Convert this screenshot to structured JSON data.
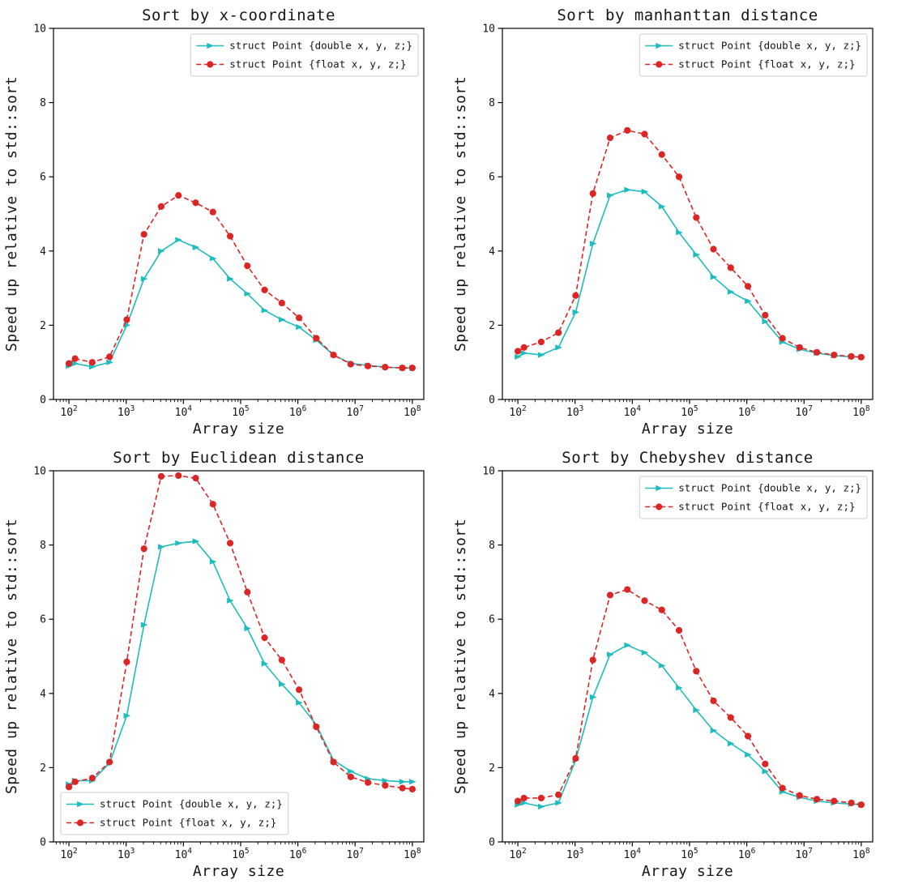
{
  "figure": {
    "xlabel": "Array size",
    "ylabel": "Speed up relative to std::sort",
    "x_major_tick_exponents": [
      2,
      3,
      4,
      5,
      6,
      7,
      8
    ],
    "y_tick_labels": [
      "0",
      "2",
      "4",
      "6",
      "8",
      "10"
    ],
    "y_ticks": [
      0,
      2,
      4,
      6,
      8,
      10
    ],
    "ylim": [
      0,
      10
    ],
    "xlim_log": [
      1.73,
      8.2
    ],
    "colors": {
      "double_series": "#1ebcbe",
      "float_series": "#dc2626",
      "text": "#151515",
      "legend_border": "#cccccc",
      "spine": "#000000"
    }
  },
  "chart_data": [
    {
      "type": "line",
      "title": "Sort by x-coordinate",
      "xlabel": "Array size",
      "ylabel": "Speed up relative to std::sort",
      "xscale": "log",
      "ylim": [
        0,
        10
      ],
      "legend_position": "top-right",
      "x": [
        100,
        128,
        256,
        512,
        1024,
        2048,
        4096,
        8192,
        16384,
        32768,
        65536,
        131072,
        262144,
        524288,
        1048576,
        2097152,
        4194304,
        8388608,
        16777216,
        33554432,
        67108864,
        100000000
      ],
      "series": [
        {
          "name": "struct Point {double x, y, z;}",
          "marker": "triangle-right",
          "line": "solid",
          "values": [
            0.9,
            0.97,
            0.88,
            1.0,
            2.0,
            3.25,
            4.0,
            4.3,
            4.1,
            3.8,
            3.25,
            2.85,
            2.4,
            2.15,
            1.95,
            1.6,
            1.2,
            0.97,
            0.92,
            0.87,
            0.85,
            0.85
          ]
        },
        {
          "name": "struct Point {float x, y, z;}",
          "marker": "circle",
          "line": "dashed",
          "values": [
            0.97,
            1.1,
            1.0,
            1.15,
            2.15,
            4.45,
            5.2,
            5.5,
            5.3,
            5.05,
            4.4,
            3.6,
            2.95,
            2.6,
            2.2,
            1.65,
            1.2,
            0.95,
            0.9,
            0.87,
            0.85,
            0.85
          ]
        }
      ]
    },
    {
      "type": "line",
      "title": "Sort by manhanttan distance",
      "xlabel": "Array size",
      "ylabel": "Speed up relative to std::sort",
      "xscale": "log",
      "ylim": [
        0,
        10
      ],
      "legend_position": "top-right",
      "x": [
        100,
        128,
        256,
        512,
        1024,
        2048,
        4096,
        8192,
        16384,
        32768,
        65536,
        131072,
        262144,
        524288,
        1048576,
        2097152,
        4194304,
        8388608,
        16777216,
        33554432,
        67108864,
        100000000
      ],
      "series": [
        {
          "name": "struct Point {double x, y, z;}",
          "marker": "triangle-right",
          "line": "solid",
          "values": [
            1.15,
            1.25,
            1.2,
            1.4,
            2.35,
            4.2,
            5.5,
            5.65,
            5.6,
            5.2,
            4.5,
            3.9,
            3.3,
            2.9,
            2.65,
            2.1,
            1.55,
            1.35,
            1.25,
            1.18,
            1.15,
            1.14
          ]
        },
        {
          "name": "struct Point {float x, y, z;}",
          "marker": "circle",
          "line": "dashed",
          "values": [
            1.3,
            1.4,
            1.55,
            1.8,
            2.8,
            5.55,
            7.05,
            7.25,
            7.15,
            6.6,
            6.0,
            4.9,
            4.05,
            3.55,
            3.05,
            2.27,
            1.65,
            1.4,
            1.27,
            1.2,
            1.16,
            1.14
          ]
        }
      ]
    },
    {
      "type": "line",
      "title": "Sort by Euclidean distance",
      "xlabel": "Array size",
      "ylabel": "Speed up relative to std::sort",
      "xscale": "log",
      "ylim": [
        0,
        10
      ],
      "legend_position": "bottom-left",
      "x": [
        100,
        128,
        256,
        512,
        1024,
        2048,
        4096,
        8192,
        16384,
        32768,
        65536,
        131072,
        262144,
        524288,
        1048576,
        2097152,
        4194304,
        8388608,
        16777216,
        33554432,
        67108864,
        100000000
      ],
      "series": [
        {
          "name": "struct Point {double x, y, z;}",
          "marker": "triangle-right",
          "line": "solid",
          "values": [
            1.55,
            1.65,
            1.65,
            2.12,
            3.4,
            5.85,
            7.95,
            8.05,
            8.1,
            7.55,
            6.5,
            5.75,
            4.8,
            4.25,
            3.75,
            3.15,
            2.2,
            1.9,
            1.7,
            1.65,
            1.62,
            1.62
          ]
        },
        {
          "name": "struct Point {float x, y, z;}",
          "marker": "circle",
          "line": "dashed",
          "values": [
            1.48,
            1.62,
            1.72,
            2.15,
            4.85,
            7.9,
            9.85,
            9.87,
            9.8,
            9.1,
            8.05,
            6.73,
            5.5,
            4.9,
            4.1,
            3.1,
            2.15,
            1.75,
            1.6,
            1.52,
            1.45,
            1.42
          ]
        }
      ]
    },
    {
      "type": "line",
      "title": "Sort by Chebyshev distance",
      "xlabel": "Array size",
      "ylabel": "Speed up relative to std::sort",
      "xscale": "log",
      "ylim": [
        0,
        10
      ],
      "legend_position": "top-right",
      "x": [
        100,
        128,
        256,
        512,
        1024,
        2048,
        4096,
        8192,
        16384,
        32768,
        65536,
        131072,
        262144,
        524288,
        1048576,
        2097152,
        4194304,
        8388608,
        16777216,
        33554432,
        67108864,
        100000000
      ],
      "series": [
        {
          "name": "struct Point {double x, y, z;}",
          "marker": "triangle-right",
          "line": "solid",
          "values": [
            1.0,
            1.05,
            0.95,
            1.05,
            2.2,
            3.9,
            5.05,
            5.3,
            5.1,
            4.75,
            4.15,
            3.55,
            3.0,
            2.65,
            2.35,
            1.9,
            1.35,
            1.2,
            1.1,
            1.05,
            1.02,
            1.0
          ]
        },
        {
          "name": "struct Point {float x, y, z;}",
          "marker": "circle",
          "line": "dashed",
          "values": [
            1.1,
            1.18,
            1.18,
            1.27,
            2.25,
            4.9,
            6.65,
            6.8,
            6.5,
            6.25,
            5.7,
            4.6,
            3.8,
            3.35,
            2.85,
            2.1,
            1.45,
            1.25,
            1.15,
            1.1,
            1.05,
            1.0
          ]
        }
      ]
    }
  ]
}
